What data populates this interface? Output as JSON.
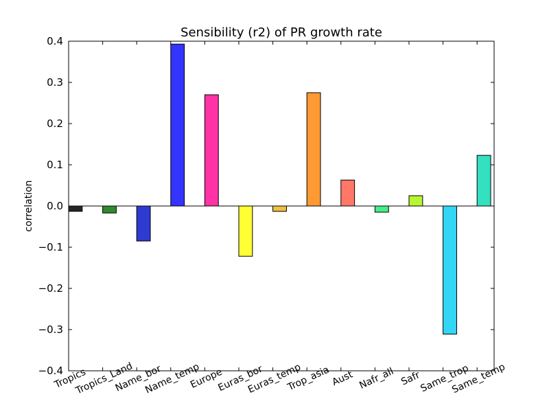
{
  "chart_data": {
    "type": "bar",
    "title": "Sensibility (r2) of PR growth rate",
    "xlabel": "",
    "ylabel": "correlation",
    "ylim": [
      -0.4,
      0.4
    ],
    "yticks": [
      "0.4",
      "0.3",
      "0.2",
      "0.1",
      "0.0",
      "−0.1",
      "−0.2",
      "−0.3",
      "−0.4"
    ],
    "grid": false,
    "categories": [
      "Tropics",
      "Tropics_Land",
      "Name_bor",
      "Name_temp",
      "Europe",
      "Euras_bor",
      "Euras_temp",
      "Trop_asia",
      "Aust",
      "Nafr_all",
      "Safr",
      "Same_trop",
      "Same_temp"
    ],
    "values": [
      -0.013,
      -0.017,
      -0.085,
      0.393,
      0.27,
      -0.122,
      -0.013,
      0.275,
      0.063,
      -0.015,
      0.025,
      -0.311,
      0.123
    ],
    "colors": [
      "#262626",
      "#2e8b2e",
      "#2e3bd1",
      "#3434ff",
      "#ff33a6",
      "#ffff33",
      "#f0c040",
      "#ff9933",
      "#ff7766",
      "#44ee88",
      "#b8f533",
      "#33d6f5",
      "#33e0c0"
    ]
  }
}
